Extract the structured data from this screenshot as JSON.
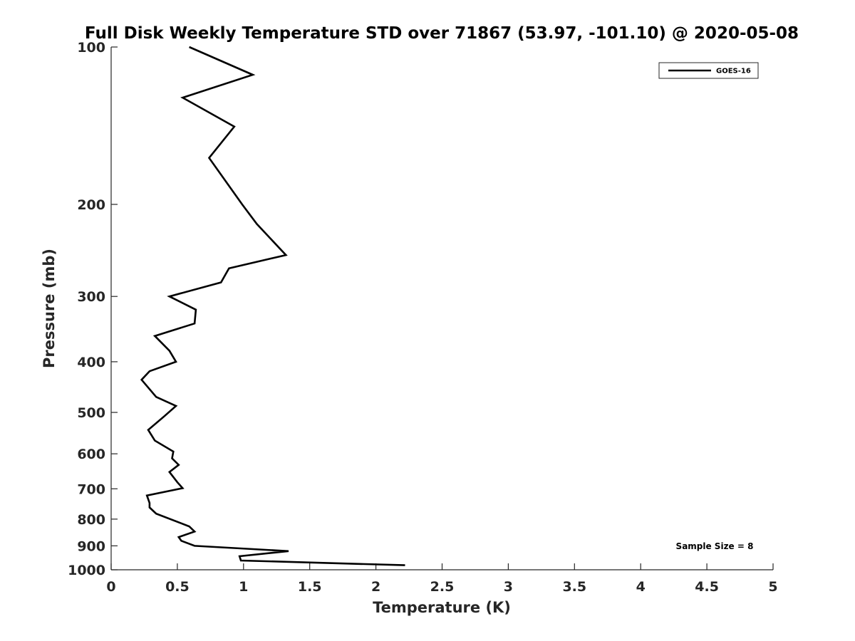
{
  "chart_data": {
    "type": "line",
    "title": "Full Disk Weekly Temperature STD over 71867 (53.97, -101.10) @ 2020-05-08",
    "xlabel": "Temperature (K)",
    "ylabel": "Pressure (mb)",
    "xlim": [
      0,
      5
    ],
    "ylim": [
      100,
      1000
    ],
    "y_scale": "log",
    "y_reversed": true,
    "x_ticks": [
      "0",
      "0.5",
      "1",
      "1.5",
      "2",
      "2.5",
      "3",
      "3.5",
      "4",
      "4.5",
      "5"
    ],
    "y_ticks": [
      "100",
      "200",
      "300",
      "400",
      "500",
      "600",
      "700",
      "800",
      "900",
      "1000"
    ],
    "legend_position": "top-right",
    "grid": false,
    "annotation": "Sample Size = 8",
    "series": [
      {
        "name": "GOES-16",
        "color": "#000000",
        "x": [
          0.59,
          1.07,
          0.54,
          0.93,
          0.74,
          0.99,
          1.1,
          1.32,
          0.89,
          0.83,
          0.44,
          0.64,
          0.63,
          0.33,
          0.44,
          0.49,
          0.29,
          0.23,
          0.34,
          0.49,
          0.4,
          0.28,
          0.33,
          0.47,
          0.46,
          0.51,
          0.44,
          0.5,
          0.54,
          0.27,
          0.29,
          0.29,
          0.34,
          0.59,
          0.63,
          0.51,
          0.53,
          0.63,
          1.34,
          0.97,
          0.98,
          2.22
        ],
        "y": [
          100,
          113,
          125,
          142,
          163,
          200,
          218,
          250,
          265,
          282,
          300,
          318,
          338,
          357,
          381,
          400,
          417,
          433,
          467,
          486,
          509,
          540,
          566,
          594,
          612,
          630,
          650,
          680,
          698,
          721,
          745,
          760,
          781,
          826,
          845,
          866,
          880,
          900,
          921,
          942,
          960,
          980
        ]
      }
    ]
  }
}
